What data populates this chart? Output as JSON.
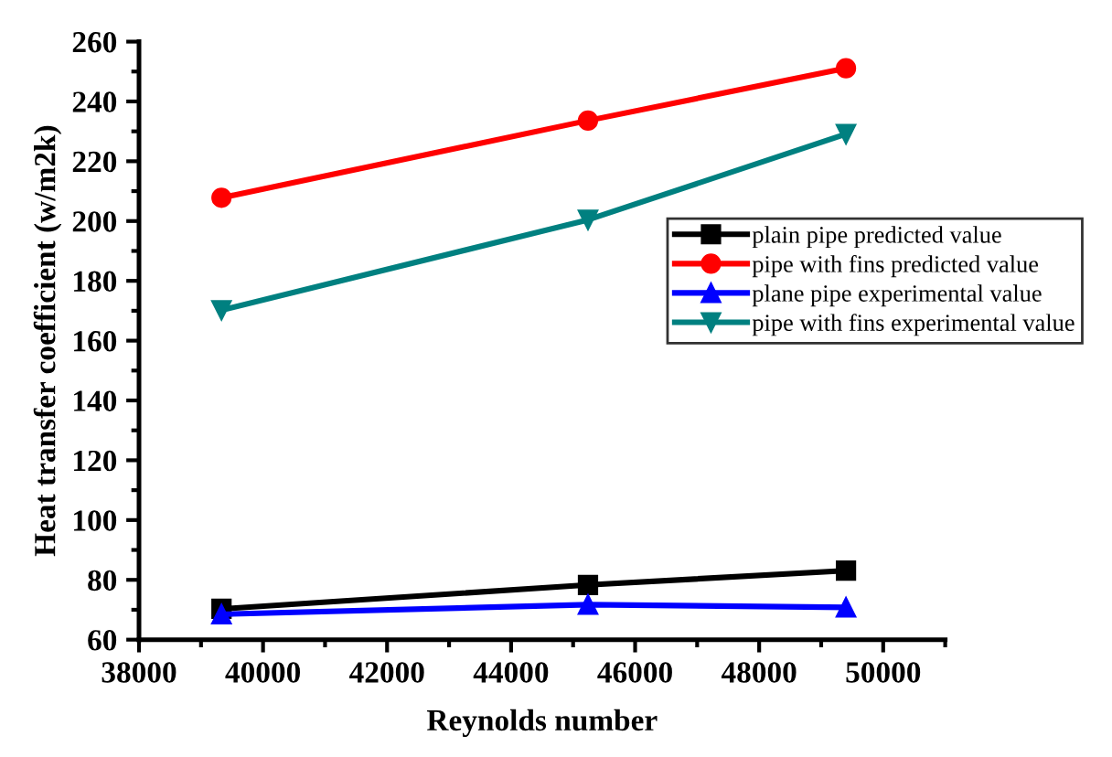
{
  "chart_data": {
    "type": "line",
    "xlabel": "Reynolds number",
    "ylabel": "Heat transfer coefficient (w/m2k)",
    "x": [
      39330,
      45240,
      49400
    ],
    "series": [
      {
        "name": "plain pipe predicted value",
        "color": "#000000",
        "marker": "square",
        "values": [
          70.3,
          78.3,
          83.1
        ]
      },
      {
        "name": "pipe with fins predicted value",
        "color": "#ff0000",
        "marker": "circle",
        "values": [
          207.8,
          233.6,
          251.1
        ]
      },
      {
        "name": "plane pipe experimental value",
        "color": "#0000ff",
        "marker": "triangle",
        "values": [
          68.5,
          71.7,
          70.8
        ]
      },
      {
        "name": "pipe with fins experimental value",
        "color": "#008080",
        "marker": "triangle_down",
        "values": [
          170.2,
          200.4,
          229.1
        ]
      }
    ],
    "xlim": [
      38000,
      51000
    ],
    "xticks": [
      38000,
      40000,
      42000,
      44000,
      46000,
      48000,
      50000
    ],
    "ylim": [
      60,
      260
    ],
    "yticks": [
      60,
      80,
      100,
      120,
      140,
      160,
      180,
      200,
      220,
      240,
      260
    ],
    "grid": false,
    "legend": "center right",
    "line_style": "solid"
  }
}
